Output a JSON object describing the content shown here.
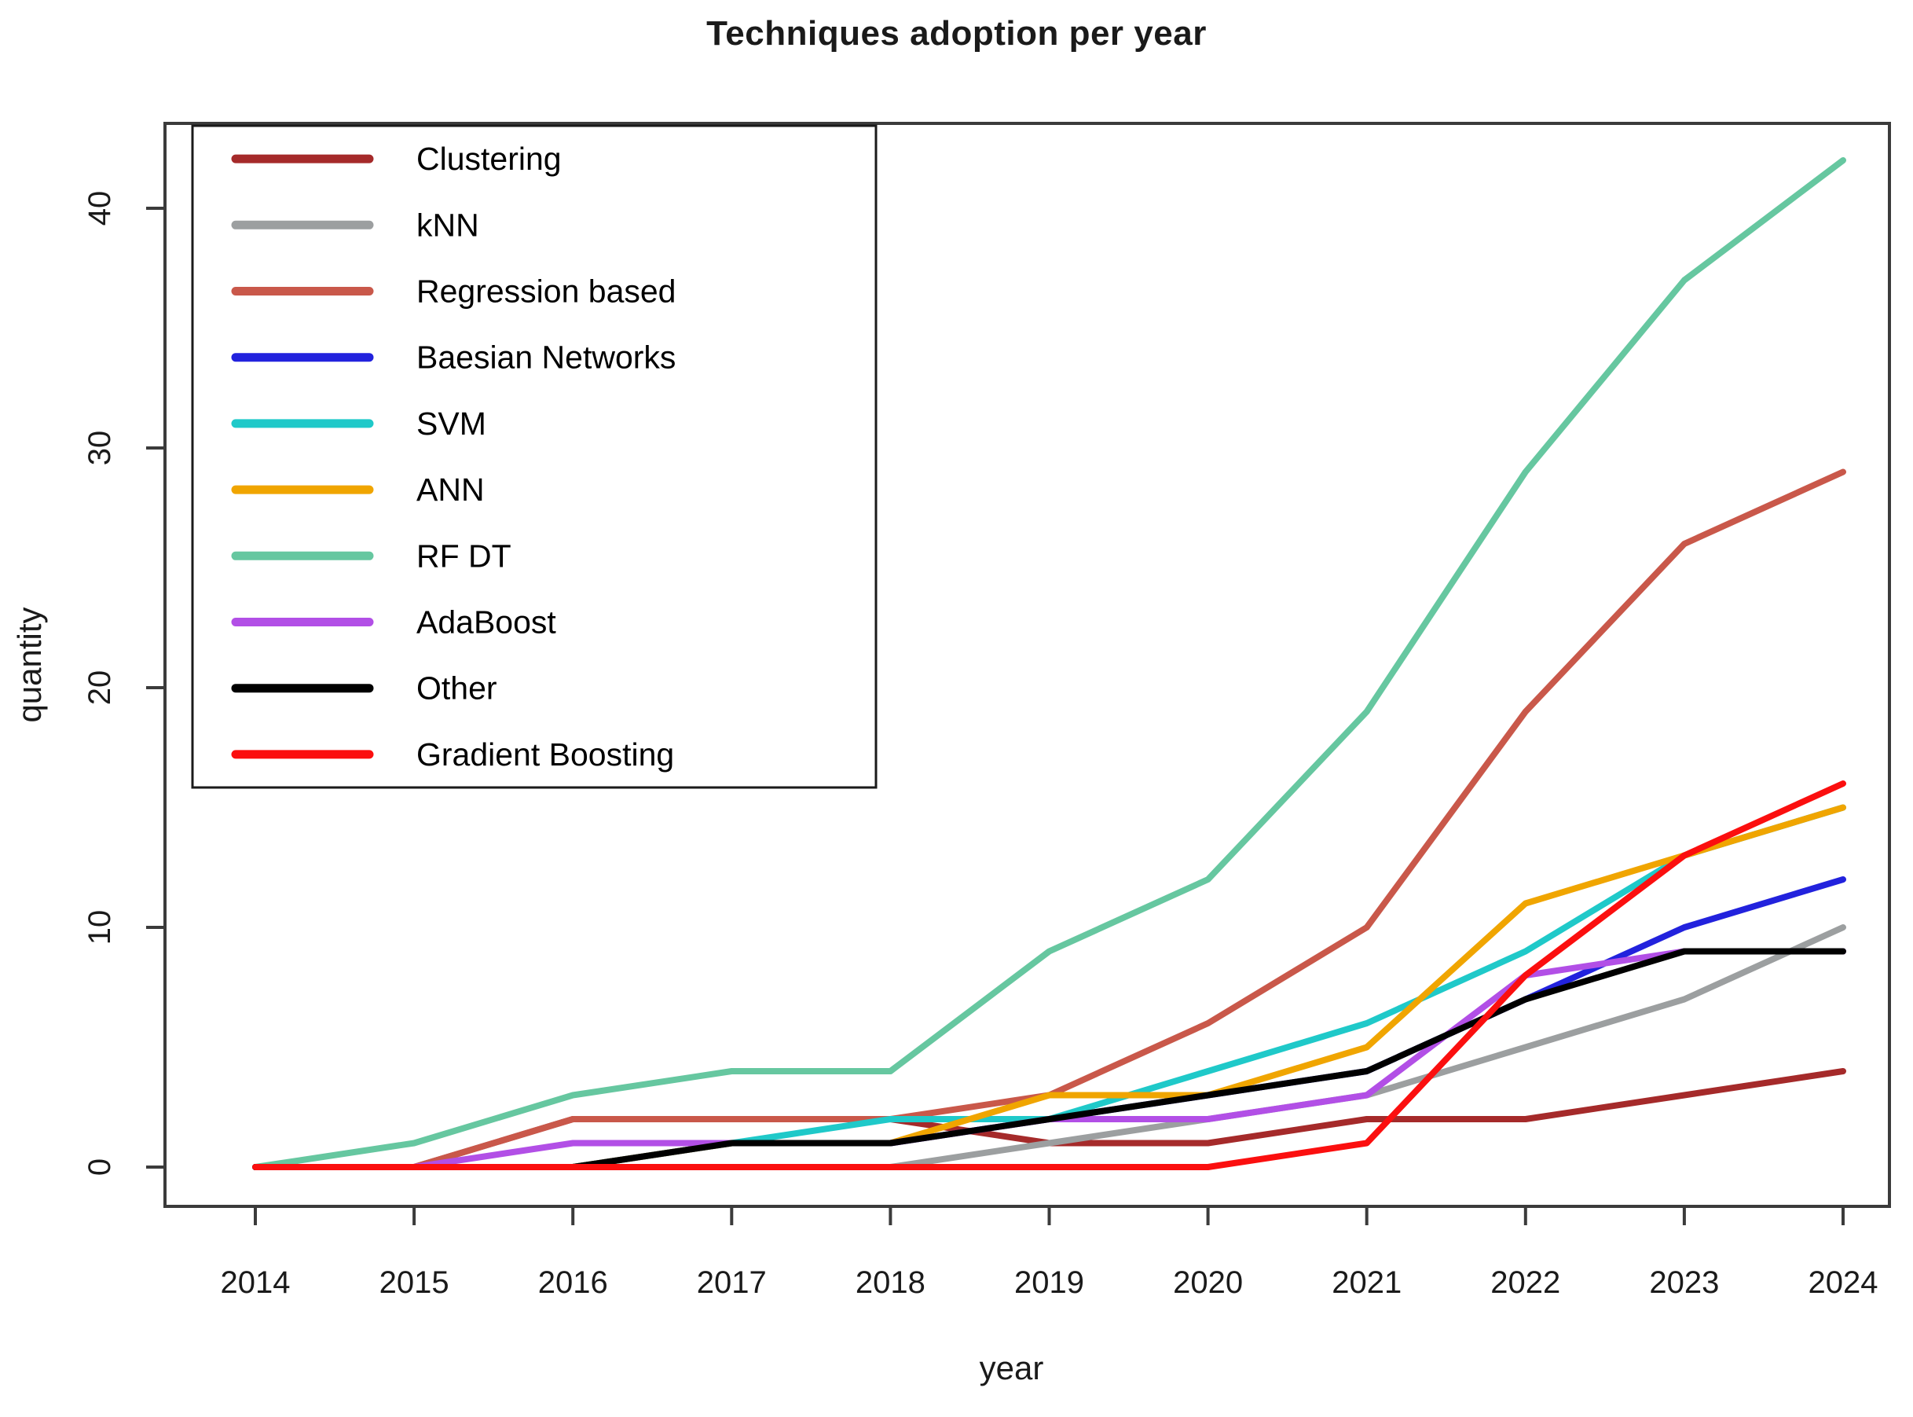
{
  "title": "Techniques adoption per year",
  "chart_data": {
    "type": "line",
    "title": "Techniques adoption per year",
    "xlabel": "year",
    "ylabel": "quantity",
    "x": [
      2014,
      2015,
      2016,
      2017,
      2018,
      2019,
      2020,
      2021,
      2022,
      2023,
      2024
    ],
    "xlim": [
      2013.5,
      2024.3
    ],
    "ylim": [
      0,
      43
    ],
    "yticks": [
      0,
      10,
      20,
      30,
      40
    ],
    "grid": false,
    "legend_position": "top-left",
    "frame_color": "#3b3b3b",
    "text_color": "#1a1a1a",
    "series": [
      {
        "name": "Clustering",
        "color": "#A52A2A",
        "values": [
          0,
          0,
          2,
          2,
          2,
          1,
          1,
          2,
          2,
          3,
          4
        ]
      },
      {
        "name": "kNN",
        "color": "#9C9FA0",
        "values": [
          0,
          0,
          0,
          0,
          0,
          1,
          2,
          3,
          5,
          7,
          10
        ]
      },
      {
        "name": "Regression based",
        "color": "#C9584A",
        "values": [
          0,
          0,
          2,
          2,
          2,
          3,
          6,
          10,
          19,
          26,
          29
        ]
      },
      {
        "name": "Baesian Networks",
        "color": "#2222DD",
        "values": [
          0,
          0,
          0,
          1,
          1,
          2,
          3,
          4,
          7,
          10,
          12
        ]
      },
      {
        "name": "SVM",
        "color": "#1FC9C9",
        "values": [
          0,
          0,
          0,
          1,
          2,
          2,
          4,
          6,
          9,
          13,
          15
        ]
      },
      {
        "name": "ANN",
        "color": "#F0A500",
        "values": [
          0,
          0,
          0,
          1,
          1,
          3,
          3,
          5,
          11,
          13,
          15
        ]
      },
      {
        "name": "RF DT",
        "color": "#66C7A0",
        "values": [
          0,
          1,
          3,
          4,
          4,
          9,
          12,
          19,
          29,
          37,
          42
        ]
      },
      {
        "name": "AdaBoost",
        "color": "#B24FE6",
        "values": [
          0,
          0,
          1,
          1,
          1,
          2,
          2,
          3,
          8,
          9,
          9
        ]
      },
      {
        "name": "Other",
        "color": "#000000",
        "values": [
          0,
          0,
          0,
          1,
          1,
          2,
          3,
          4,
          7,
          9,
          9
        ]
      },
      {
        "name": "Gradient Boosting",
        "color": "#FB0F0F",
        "values": [
          0,
          0,
          0,
          0,
          0,
          0,
          0,
          1,
          8,
          13,
          16
        ]
      }
    ]
  }
}
